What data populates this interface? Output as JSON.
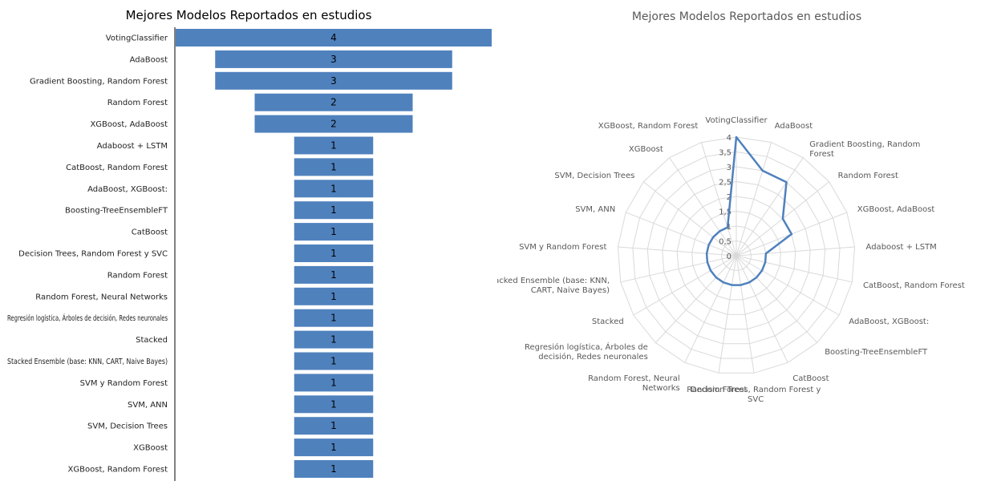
{
  "chart_data": [
    {
      "type": "bar",
      "orientation": "horizontal-centered",
      "title": "Mejores Modelos Reportados en estudios",
      "categories": [
        "VotingClassifier",
        "AdaBoost",
        "Gradient Boosting, Random Forest",
        "Random Forest",
        "XGBoost, AdaBoost",
        "Adaboost + LSTM",
        "CatBoost, Random Forest",
        "AdaBoost, XGBoost:",
        "Boosting-TreeEnsembleFT",
        "CatBoost",
        "Decision Trees, Random Forest y SVC",
        "Random Forest",
        "Random Forest, Neural Networks",
        "Regresión logística, Árboles de decisión, Redes neuronales",
        "Stacked",
        "Stacked Ensemble (base: KNN, CART, Naive Bayes)",
        "SVM y Random Forest",
        "SVM, ANN",
        "SVM, Decision Trees",
        "XGBoost",
        "XGBoost, Random Forest"
      ],
      "values": [
        4,
        3,
        3,
        2,
        2,
        1,
        1,
        1,
        1,
        1,
        1,
        1,
        1,
        1,
        1,
        1,
        1,
        1,
        1,
        1,
        1
      ],
      "value_labels": [
        "4",
        "3",
        "3",
        "2",
        "2",
        "1",
        "1",
        "1",
        "1",
        "1",
        "1",
        "1",
        "1",
        "1",
        "1",
        "1",
        "1",
        "1",
        "1",
        "1",
        "1"
      ],
      "bar_color": "#4f81bd"
    },
    {
      "type": "radar",
      "title": "Mejores Modelos Reportados en estudios",
      "categories": [
        "VotingClassifier",
        "AdaBoost",
        "Gradient Boosting, Random Forest",
        "Random Forest",
        "XGBoost, AdaBoost",
        "Adaboost + LSTM",
        "CatBoost, Random Forest",
        "AdaBoost, XGBoost:",
        "Boosting-TreeEnsembleFT",
        "CatBoost",
        "Decision Trees, Random Forest y SVC",
        "Random Forest",
        "Random Forest, Neural Networks",
        "Regresión logística, Árboles de decisión, Redes neuronales",
        "Stacked",
        "Stacked Ensemble (base: KNN, CART, Naive Bayes)",
        "SVM y Random Forest",
        "SVM, ANN",
        "SVM, Decision Trees",
        "XGBoost",
        "XGBoost, Random Forest"
      ],
      "values": [
        4,
        3,
        3,
        2,
        2,
        1,
        1,
        1,
        1,
        1,
        1,
        1,
        1,
        1,
        1,
        1,
        1,
        1,
        1,
        1,
        1
      ],
      "rlim": [
        0,
        4
      ],
      "ticks": [
        "0",
        "0,5",
        "1",
        "1,5",
        "2",
        "2,5",
        "3",
        "3,5",
        "4"
      ],
      "line_color": "#4f81bd",
      "grid_color": "#d9d9d9"
    }
  ]
}
